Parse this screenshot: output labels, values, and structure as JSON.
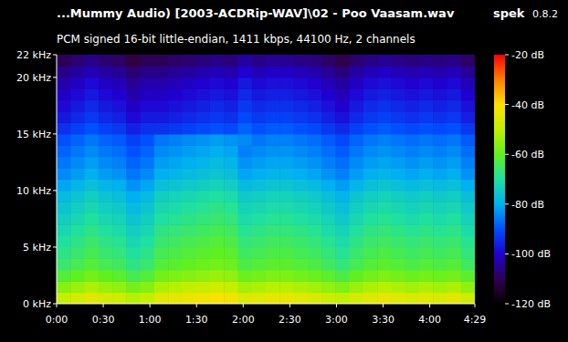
{
  "chart_data": {
    "type": "heatmap",
    "title": "...Mummy Audio) [2003-ACDRip-WAV]\\02 - Poo Vaasam.wav",
    "subtitle": "PCM signed 16-bit little-endian, 1411 kbps, 44100 Hz, 2 channels",
    "annotations": [
      "spek",
      "0.8.2"
    ],
    "xlim": [
      0,
      269
    ],
    "xticks": [
      {
        "value": 0,
        "label": "0:00"
      },
      {
        "value": 30,
        "label": "0:30"
      },
      {
        "value": 60,
        "label": "1:00"
      },
      {
        "value": 90,
        "label": "1:30"
      },
      {
        "value": 120,
        "label": "2:00"
      },
      {
        "value": 150,
        "label": "2:30"
      },
      {
        "value": 180,
        "label": "3:00"
      },
      {
        "value": 210,
        "label": "3:30"
      },
      {
        "value": 240,
        "label": "4:00"
      },
      {
        "value": 269,
        "label": "4:29"
      }
    ],
    "ylim": [
      0,
      22
    ],
    "yticks": [
      {
        "value": 0,
        "label": "0 kHz"
      },
      {
        "value": 5,
        "label": "5 kHz"
      },
      {
        "value": 10,
        "label": "10 kHz"
      },
      {
        "value": 15,
        "label": "15 kHz"
      },
      {
        "value": 20,
        "label": "20 kHz"
      },
      {
        "value": 22,
        "label": "22 kHz"
      }
    ],
    "color_range": [
      -120,
      -20
    ],
    "color_ticks": [
      {
        "value": -20,
        "label": "-20 dB"
      },
      {
        "value": -40,
        "label": "-40 dB"
      },
      {
        "value": -60,
        "label": "-60 dB"
      },
      {
        "value": -80,
        "label": "-80 dB"
      },
      {
        "value": -100,
        "label": "-100 dB"
      },
      {
        "value": -120,
        "label": "-120 dB"
      }
    ],
    "cells": [
      [
        -49,
        -47,
        -45,
        -47,
        -48,
        -51,
        -49,
        -45,
        -44,
        -43,
        -42,
        -41,
        -42,
        -46,
        -45,
        -44,
        -44,
        -45,
        -46,
        -48,
        -50,
        -47,
        -45,
        -44,
        -45,
        -46,
        -45,
        -46,
        -45,
        -48
      ],
      [
        -56,
        -54,
        -52,
        -54,
        -55,
        -58,
        -56,
        -52,
        -51,
        -50,
        -49,
        -48,
        -49,
        -53,
        -52,
        -51,
        -51,
        -52,
        -53,
        -55,
        -57,
        -54,
        -52,
        -51,
        -52,
        -53,
        -52,
        -53,
        -52,
        -55
      ],
      [
        -62,
        -60,
        -58,
        -60,
        -61,
        -64,
        -62,
        -58,
        -57,
        -56,
        -55,
        -54,
        -55,
        -59,
        -58,
        -57,
        -57,
        -58,
        -59,
        -61,
        -63,
        -60,
        -58,
        -57,
        -58,
        -59,
        -58,
        -59,
        -58,
        -61
      ],
      [
        -66,
        -64,
        -62,
        -64,
        -65,
        -68,
        -66,
        -62,
        -61,
        -60,
        -59,
        -58,
        -59,
        -63,
        -62,
        -61,
        -61,
        -62,
        -63,
        -65,
        -67,
        -64,
        -62,
        -61,
        -62,
        -63,
        -62,
        -63,
        -62,
        -65
      ],
      [
        -68,
        -66,
        -64,
        -66,
        -67,
        -70,
        -68,
        -64,
        -63,
        -62,
        -61,
        -60,
        -61,
        -65,
        -64,
        -63,
        -63,
        -64,
        -65,
        -67,
        -69,
        -66,
        -64,
        -63,
        -64,
        -65,
        -64,
        -65,
        -64,
        -67
      ],
      [
        -70,
        -68,
        -66,
        -68,
        -69,
        -72,
        -70,
        -66,
        -65,
        -64,
        -63,
        -62,
        -63,
        -67,
        -66,
        -65,
        -65,
        -66,
        -67,
        -69,
        -71,
        -68,
        -66,
        -65,
        -66,
        -67,
        -66,
        -67,
        -66,
        -69
      ],
      [
        -72,
        -70,
        -68,
        -70,
        -71,
        -74,
        -72,
        -68,
        -67,
        -66,
        -65,
        -64,
        -65,
        -69,
        -68,
        -67,
        -67,
        -68,
        -69,
        -71,
        -73,
        -70,
        -68,
        -67,
        -68,
        -69,
        -68,
        -69,
        -68,
        -71
      ],
      [
        -74,
        -72,
        -70,
        -72,
        -73,
        -76,
        -74,
        -70,
        -69,
        -68,
        -67,
        -66,
        -67,
        -71,
        -70,
        -69,
        -69,
        -70,
        -71,
        -73,
        -75,
        -72,
        -70,
        -69,
        -70,
        -71,
        -70,
        -71,
        -70,
        -73
      ],
      [
        -76,
        -74,
        -72,
        -74,
        -75,
        -78,
        -76,
        -72,
        -71,
        -70,
        -69,
        -68,
        -69,
        -73,
        -72,
        -71,
        -71,
        -72,
        -73,
        -75,
        -77,
        -74,
        -72,
        -71,
        -72,
        -73,
        -72,
        -73,
        -72,
        -75
      ],
      [
        -78,
        -76,
        -74,
        -76,
        -77,
        -80,
        -78,
        -74,
        -73,
        -72,
        -71,
        -70,
        -71,
        -75,
        -74,
        -73,
        -73,
        -74,
        -75,
        -77,
        -79,
        -76,
        -74,
        -73,
        -74,
        -75,
        -74,
        -75,
        -74,
        -77
      ],
      [
        -81,
        -79,
        -77,
        -79,
        -80,
        -83,
        -81,
        -77,
        -76,
        -75,
        -74,
        -73,
        -74,
        -78,
        -77,
        -76,
        -76,
        -77,
        -78,
        -80,
        -82,
        -79,
        -77,
        -76,
        -77,
        -78,
        -77,
        -78,
        -77,
        -80
      ],
      [
        -84,
        -82,
        -80,
        -82,
        -83,
        -86,
        -84,
        -80,
        -79,
        -78,
        -77,
        -76,
        -77,
        -81,
        -80,
        -79,
        -79,
        -80,
        -81,
        -83,
        -85,
        -82,
        -80,
        -79,
        -80,
        -81,
        -80,
        -81,
        -80,
        -83
      ],
      [
        -86,
        -84,
        -82,
        -84,
        -85,
        -88,
        -86,
        -82,
        -81,
        -80,
        -79,
        -78,
        -79,
        -83,
        -82,
        -81,
        -81,
        -82,
        -83,
        -85,
        -87,
        -84,
        -82,
        -81,
        -82,
        -83,
        -82,
        -83,
        -82,
        -85
      ],
      [
        -88,
        -86,
        -84,
        -86,
        -87,
        -90,
        -88,
        -84,
        -83,
        -82,
        -81,
        -80,
        -81,
        -85,
        -84,
        -83,
        -83,
        -84,
        -85,
        -87,
        -89,
        -86,
        -84,
        -83,
        -84,
        -85,
        -84,
        -85,
        -84,
        -87
      ],
      [
        -90,
        -88,
        -86,
        -88,
        -89,
        -92,
        -90,
        -86,
        -85,
        -84,
        -83,
        -82,
        -83,
        -84,
        -86,
        -85,
        -85,
        -86,
        -87,
        -89,
        -91,
        -88,
        -86,
        -85,
        -86,
        -87,
        -86,
        -87,
        -86,
        -89
      ],
      [
        -94,
        -92,
        -90,
        -92,
        -93,
        -96,
        -94,
        -94,
        -93,
        -92,
        -91,
        -90,
        -91,
        -88,
        -90,
        -89,
        -89,
        -90,
        -91,
        -93,
        -95,
        -92,
        -90,
        -89,
        -90,
        -91,
        -90,
        -91,
        -90,
        -93
      ],
      [
        -97,
        -95,
        -93,
        -95,
        -96,
        -99,
        -97,
        -97,
        -96,
        -95,
        -94,
        -93,
        -94,
        -91,
        -93,
        -92,
        -92,
        -93,
        -94,
        -96,
        -98,
        -95,
        -93,
        -92,
        -93,
        -94,
        -93,
        -94,
        -93,
        -96
      ],
      [
        -99,
        -97,
        -95,
        -97,
        -98,
        -101,
        -99,
        -99,
        -98,
        -97,
        -96,
        -95,
        -96,
        -93,
        -95,
        -94,
        -94,
        -95,
        -96,
        -98,
        -100,
        -97,
        -95,
        -94,
        -95,
        -96,
        -95,
        -96,
        -95,
        -98
      ],
      [
        -101,
        -99,
        -97,
        -99,
        -100,
        -103,
        -101,
        -101,
        -100,
        -99,
        -98,
        -97,
        -98,
        -95,
        -97,
        -96,
        -96,
        -97,
        -98,
        -100,
        -102,
        -99,
        -97,
        -96,
        -97,
        -98,
        -97,
        -98,
        -97,
        -100
      ],
      [
        -103,
        -101,
        -99,
        -101,
        -102,
        -105,
        -103,
        -103,
        -102,
        -101,
        -100,
        -99,
        -100,
        -97,
        -99,
        -98,
        -98,
        -99,
        -100,
        -102,
        -104,
        -101,
        -99,
        -98,
        -99,
        -100,
        -99,
        -100,
        -99,
        -102
      ],
      [
        -106,
        -104,
        -102,
        -104,
        -105,
        -108,
        -106,
        -106,
        -105,
        -104,
        -103,
        -102,
        -103,
        -100,
        -102,
        -101,
        -101,
        -102,
        -103,
        -105,
        -107,
        -104,
        -102,
        -101,
        -102,
        -103,
        -102,
        -103,
        -102,
        -105
      ],
      [
        -110,
        -108,
        -106,
        -108,
        -109,
        -112,
        -110,
        -110,
        -109,
        -108,
        -107,
        -106,
        -107,
        -104,
        -106,
        -105,
        -105,
        -106,
        -107,
        -109,
        -111,
        -108,
        -106,
        -105,
        -106,
        -107,
        -106,
        -107,
        -106,
        -109
      ]
    ]
  }
}
